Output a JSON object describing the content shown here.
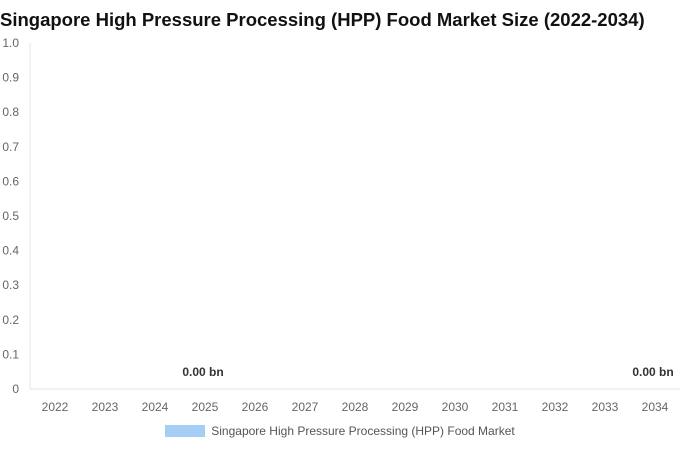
{
  "chart_data": {
    "type": "bar",
    "title": "Singapore High Pressure Processing (HPP) Food Market Size (2022-2034)",
    "xlabel": "",
    "ylabel": "",
    "categories": [
      "2022",
      "2023",
      "2024",
      "2025",
      "2026",
      "2027",
      "2028",
      "2029",
      "2030",
      "2031",
      "2032",
      "2033",
      "2034"
    ],
    "series": [
      {
        "name": "Singapore High Pressure Processing (HPP) Food Market",
        "values": [
          0,
          0,
          0,
          0,
          0,
          0,
          0,
          0,
          0,
          0,
          0,
          0,
          0
        ],
        "color": "#a6cdf5"
      }
    ],
    "data_labels": [
      {
        "category": "2025",
        "text": "0.00 bn"
      },
      {
        "category": "2034",
        "text": "0.00 bn"
      }
    ],
    "ylim": [
      0,
      1.0
    ],
    "yticks": [
      "0",
      "0.1",
      "0.2",
      "0.3",
      "0.4",
      "0.5",
      "0.6",
      "0.7",
      "0.8",
      "0.9",
      "1.0"
    ],
    "grid": false,
    "legend_position": "bottom"
  }
}
